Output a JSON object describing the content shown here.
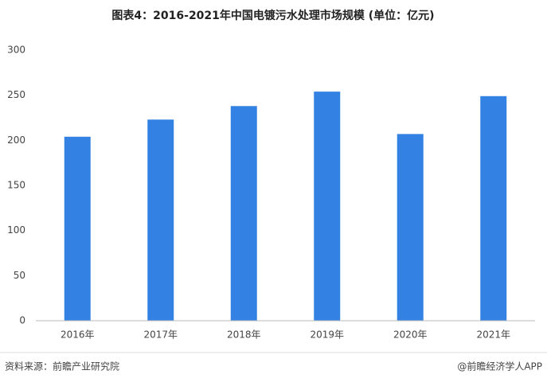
{
  "chart_data": {
    "type": "bar",
    "title": "图表4：2016-2021年中国电镀污水处理市场规模 (单位：亿元)",
    "categories": [
      "2016年",
      "2017年",
      "2018年",
      "2019年",
      "2020年",
      "2021年"
    ],
    "values": [
      204,
      223,
      238,
      254,
      207,
      249
    ],
    "color": "#3382e3",
    "ylim": [
      0,
      300
    ],
    "yticks": [
      0,
      50,
      100,
      150,
      200,
      250,
      300
    ],
    "grid": false
  },
  "footer": {
    "source": "资料来源：前瞻产业研究院",
    "brand": "@前瞻经济学人APP"
  }
}
